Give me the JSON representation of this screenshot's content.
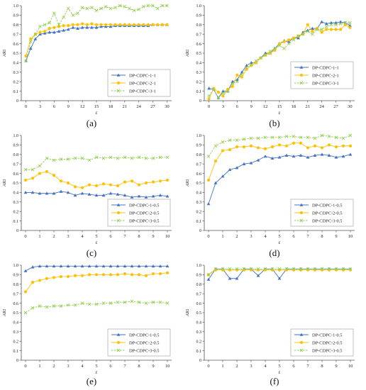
{
  "figure": {
    "palette": {
      "s1": "#4472c4",
      "s2": "#ffc000",
      "s3": "#92d050",
      "axis": "#555555",
      "legend_border": "#999999"
    },
    "captions": [
      "(a)",
      "(b)",
      "(c)",
      "(d)",
      "(e)",
      "(f)"
    ]
  },
  "chart_data": [
    {
      "type": "line",
      "caption": "(a)",
      "xlabel": "ε",
      "ylabel": "ARI",
      "xlim": [
        -1,
        31
      ],
      "ylim": [
        0,
        1.0
      ],
      "xticks": [
        0,
        3,
        6,
        9,
        12,
        15,
        18,
        21,
        24,
        27,
        30
      ],
      "yticks": [
        0,
        0.1,
        0.2,
        0.3,
        0.4,
        0.5,
        0.6,
        0.7,
        0.8,
        0.9,
        1.0
      ],
      "legend": "bottom-right",
      "x": [
        0,
        1,
        2,
        3,
        4,
        5,
        6,
        7,
        8,
        9,
        10,
        11,
        12,
        13,
        14,
        15,
        16,
        17,
        18,
        19,
        20,
        21,
        22,
        23,
        24,
        25,
        26,
        27,
        28,
        29,
        30
      ],
      "series": [
        {
          "name": "DP-CDPC-1-1",
          "values": [
            0.42,
            0.55,
            0.65,
            0.7,
            0.71,
            0.72,
            0.72,
            0.73,
            0.74,
            0.75,
            0.77,
            0.76,
            0.77,
            0.77,
            0.77,
            0.77,
            0.78,
            0.78,
            0.78,
            0.79,
            0.79,
            0.79,
            0.79,
            0.79,
            0.79,
            0.79,
            0.79,
            0.8,
            0.8,
            0.8,
            0.8
          ]
        },
        {
          "name": "DP-CDPC-2-1",
          "values": [
            0.47,
            0.65,
            0.7,
            0.72,
            0.73,
            0.76,
            0.77,
            0.78,
            0.79,
            0.79,
            0.8,
            0.8,
            0.81,
            0.8,
            0.81,
            0.8,
            0.8,
            0.8,
            0.8,
            0.8,
            0.8,
            0.8,
            0.8,
            0.8,
            0.8,
            0.8,
            0.8,
            0.8,
            0.8,
            0.8,
            0.8
          ]
        },
        {
          "name": "DP-CDPC-3-1",
          "values": [
            0.42,
            0.62,
            0.7,
            0.78,
            0.8,
            0.82,
            0.92,
            0.8,
            0.88,
            0.97,
            0.9,
            0.92,
            0.98,
            0.97,
            0.98,
            0.95,
            0.97,
            0.99,
            0.97,
            0.98,
            1.0,
            0.99,
            0.97,
            0.95,
            0.96,
            0.99,
            1.0,
            1.0,
            0.97,
            1.0,
            1.0
          ]
        }
      ]
    },
    {
      "type": "line",
      "caption": "(b)",
      "xlabel": "ε",
      "ylabel": "ARI",
      "xlim": [
        -1,
        31
      ],
      "ylim": [
        0,
        1.0
      ],
      "xticks": [
        0,
        3,
        6,
        9,
        12,
        15,
        18,
        21,
        24,
        27,
        30
      ],
      "yticks": [
        0,
        0.1,
        0.2,
        0.3,
        0.4,
        0.5,
        0.6,
        0.7,
        0.8,
        0.9,
        1.0
      ],
      "legend": "right",
      "x": [
        0,
        1,
        2,
        3,
        4,
        5,
        6,
        7,
        8,
        9,
        10,
        11,
        12,
        13,
        14,
        15,
        16,
        17,
        18,
        19,
        20,
        21,
        22,
        23,
        24,
        25,
        26,
        27,
        28,
        29,
        30
      ],
      "series": [
        {
          "name": "DP-CDPC-1-1",
          "values": [
            0.13,
            0.12,
            0.03,
            0.1,
            0.1,
            0.2,
            0.22,
            0.3,
            0.37,
            0.4,
            0.4,
            0.45,
            0.5,
            0.5,
            0.55,
            0.6,
            0.63,
            0.62,
            0.66,
            0.66,
            0.72,
            0.74,
            0.76,
            0.76,
            0.83,
            0.81,
            0.82,
            0.82,
            0.83,
            0.82,
            0.79
          ]
        },
        {
          "name": "DP-CDPC-2-1",
          "values": [
            0.02,
            0.13,
            0.09,
            0.05,
            0.12,
            0.15,
            0.27,
            0.25,
            0.33,
            0.37,
            0.4,
            0.45,
            0.48,
            0.5,
            0.53,
            0.6,
            0.62,
            0.64,
            0.66,
            0.68,
            0.7,
            0.8,
            0.73,
            0.76,
            0.72,
            0.75,
            0.75,
            0.75,
            0.75,
            0.8,
            0.77
          ]
        },
        {
          "name": "DP-CDPC-3-1",
          "values": [
            0.05,
            0.12,
            0.03,
            0.08,
            0.1,
            0.18,
            0.2,
            0.28,
            0.35,
            0.38,
            0.42,
            0.45,
            0.48,
            0.52,
            0.55,
            0.58,
            0.55,
            0.6,
            0.64,
            0.68,
            0.7,
            0.73,
            0.7,
            0.75,
            0.75,
            0.78,
            0.8,
            0.8,
            0.81,
            0.82,
            0.82
          ]
        }
      ]
    },
    {
      "type": "line",
      "caption": "(c)",
      "xlabel": "ε",
      "ylabel": "ARI",
      "xlim": [
        -0.3,
        10.3
      ],
      "ylim": [
        0,
        1.0
      ],
      "xticks": [
        0,
        1,
        2,
        3,
        4,
        5,
        6,
        7,
        8,
        9,
        10
      ],
      "yticks": [
        0,
        0.1,
        0.2,
        0.3,
        0.4,
        0.5,
        0.6,
        0.7,
        0.8,
        0.9,
        1.0
      ],
      "legend": "bottom-right",
      "x": [
        0,
        0.5,
        1,
        1.5,
        2,
        2.5,
        3,
        3.5,
        4,
        4.5,
        5,
        5.5,
        6,
        6.5,
        7,
        7.5,
        8,
        8.5,
        9,
        9.5,
        10
      ],
      "series": [
        {
          "name": "DP-CDPC-1-0.5",
          "values": [
            0.4,
            0.4,
            0.39,
            0.39,
            0.39,
            0.41,
            0.4,
            0.37,
            0.39,
            0.38,
            0.37,
            0.37,
            0.39,
            0.38,
            0.37,
            0.35,
            0.36,
            0.35,
            0.36,
            0.37,
            0.36
          ]
        },
        {
          "name": "DP-CDPC-2-0.5",
          "values": [
            0.53,
            0.55,
            0.6,
            0.62,
            0.58,
            0.52,
            0.5,
            0.46,
            0.45,
            0.48,
            0.47,
            0.49,
            0.48,
            0.47,
            0.51,
            0.52,
            0.48,
            0.5,
            0.51,
            0.52,
            0.53
          ]
        },
        {
          "name": "DP-CDPC-3-0.5",
          "values": [
            0.64,
            0.64,
            0.68,
            0.76,
            0.74,
            0.75,
            0.75,
            0.76,
            0.76,
            0.74,
            0.77,
            0.76,
            0.77,
            0.76,
            0.77,
            0.76,
            0.77,
            0.76,
            0.76,
            0.77,
            0.77
          ]
        }
      ]
    },
    {
      "type": "line",
      "caption": "(d)",
      "xlabel": "ε",
      "ylabel": "ARI",
      "xlim": [
        -0.3,
        10.3
      ],
      "ylim": [
        0,
        1.0
      ],
      "xticks": [
        0,
        1,
        2,
        3,
        4,
        5,
        6,
        7,
        8,
        9,
        10
      ],
      "yticks": [
        0,
        0.1,
        0.2,
        0.3,
        0.4,
        0.5,
        0.6,
        0.7,
        0.8,
        0.9,
        1.0
      ],
      "legend": "bottom-right",
      "x": [
        0,
        0.5,
        1,
        1.5,
        2,
        2.5,
        3,
        3.5,
        4,
        4.5,
        5,
        5.5,
        6,
        6.5,
        7,
        7.5,
        8,
        8.5,
        9,
        9.5,
        10
      ],
      "series": [
        {
          "name": "DP-CDPC-1-0.5",
          "values": [
            0.28,
            0.5,
            0.57,
            0.64,
            0.66,
            0.7,
            0.71,
            0.74,
            0.78,
            0.76,
            0.77,
            0.79,
            0.78,
            0.79,
            0.77,
            0.79,
            0.8,
            0.79,
            0.77,
            0.78,
            0.8
          ]
        },
        {
          "name": "DP-CDPC-2-0.5",
          "values": [
            0.53,
            0.73,
            0.84,
            0.85,
            0.88,
            0.88,
            0.89,
            0.87,
            0.86,
            0.88,
            0.9,
            0.89,
            0.92,
            0.92,
            0.87,
            0.89,
            0.87,
            0.9,
            0.88,
            0.89,
            0.89
          ]
        },
        {
          "name": "DP-CDPC-3-0.5",
          "values": [
            0.78,
            0.89,
            0.93,
            0.95,
            0.95,
            0.96,
            0.97,
            0.97,
            0.98,
            0.98,
            0.98,
            0.99,
            0.99,
            0.98,
            0.98,
            0.97,
            1.0,
            0.99,
            0.98,
            0.97,
            1.0
          ]
        }
      ]
    },
    {
      "type": "line",
      "caption": "(e)",
      "xlabel": "ε",
      "ylabel": "ARI",
      "xlim": [
        -0.3,
        10.3
      ],
      "ylim": [
        0,
        1.0
      ],
      "xticks": [
        0,
        1,
        2,
        3,
        4,
        5,
        6,
        7,
        8,
        9,
        10
      ],
      "yticks": [
        0,
        0.1,
        0.2,
        0.3,
        0.4,
        0.5,
        0.6,
        0.7,
        0.8,
        0.9,
        1.0
      ],
      "legend": "bottom-right",
      "x": [
        0,
        0.5,
        1,
        1.5,
        2,
        2.5,
        3,
        3.5,
        4,
        4.5,
        5,
        5.5,
        6,
        6.5,
        7,
        7.5,
        8,
        8.5,
        9,
        9.5,
        10
      ],
      "series": [
        {
          "name": "DP-CDPC-1-0.5",
          "values": [
            0.94,
            0.98,
            0.99,
            0.99,
            0.99,
            0.99,
            0.99,
            0.99,
            0.99,
            0.99,
            0.99,
            0.99,
            0.99,
            0.99,
            0.99,
            0.99,
            0.99,
            0.99,
            0.99,
            0.99,
            0.99
          ]
        },
        {
          "name": "DP-CDPC-2-0.5",
          "values": [
            0.72,
            0.82,
            0.84,
            0.86,
            0.87,
            0.88,
            0.88,
            0.89,
            0.89,
            0.9,
            0.9,
            0.9,
            0.9,
            0.9,
            0.91,
            0.9,
            0.9,
            0.89,
            0.91,
            0.91,
            0.92
          ]
        },
        {
          "name": "DP-CDPC-3-0.5",
          "values": [
            0.5,
            0.55,
            0.57,
            0.56,
            0.57,
            0.57,
            0.58,
            0.58,
            0.6,
            0.59,
            0.59,
            0.6,
            0.6,
            0.61,
            0.61,
            0.62,
            0.61,
            0.6,
            0.61,
            0.61,
            0.6
          ]
        }
      ]
    },
    {
      "type": "line",
      "caption": "(f)",
      "xlabel": "ε",
      "ylabel": "ARI",
      "xlim": [
        -0.3,
        10.3
      ],
      "ylim": [
        0,
        1.0
      ],
      "xticks": [
        0,
        1,
        2,
        3,
        4,
        5,
        6,
        7,
        8,
        9,
        10
      ],
      "yticks": [
        0,
        0.1,
        0.2,
        0.3,
        0.4,
        0.5,
        0.6,
        0.7,
        0.8,
        0.9,
        1.0
      ],
      "legend": "bottom-right",
      "x": [
        0,
        0.5,
        1,
        1.5,
        2,
        2.5,
        3,
        3.5,
        4,
        4.5,
        5,
        5.5,
        6,
        6.5,
        7,
        7.5,
        8,
        8.5,
        9,
        9.5,
        10
      ],
      "series": [
        {
          "name": "DP-CDPC-1-0.5",
          "values": [
            0.85,
            0.96,
            0.96,
            0.86,
            0.86,
            0.96,
            0.96,
            0.89,
            0.96,
            0.96,
            0.86,
            0.96,
            0.96,
            0.96,
            0.96,
            0.96,
            0.96,
            0.96,
            0.96,
            0.96,
            0.96
          ]
        },
        {
          "name": "DP-CDPC-2-0.5",
          "values": [
            0.9,
            0.95,
            0.95,
            0.95,
            0.95,
            0.95,
            0.95,
            0.95,
            0.95,
            0.95,
            0.95,
            0.95,
            0.95,
            0.95,
            0.95,
            0.95,
            0.95,
            0.95,
            0.95,
            0.95,
            0.95
          ]
        },
        {
          "name": "DP-CDPC-3-0.5",
          "values": [
            0.9,
            0.96,
            0.96,
            0.96,
            0.96,
            0.96,
            0.96,
            0.96,
            0.96,
            0.96,
            0.96,
            0.96,
            0.96,
            0.96,
            0.96,
            0.96,
            0.96,
            0.96,
            0.96,
            0.96,
            0.96
          ]
        }
      ]
    }
  ]
}
